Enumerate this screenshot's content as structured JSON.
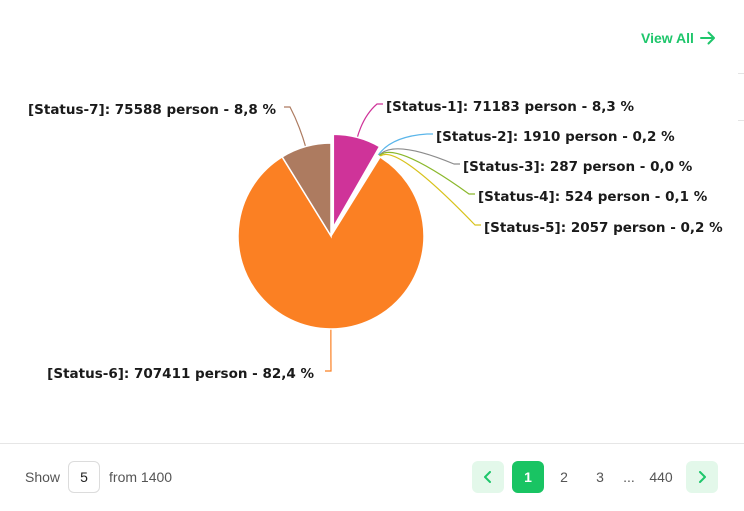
{
  "header": {
    "view_all_label": "View All",
    "view_all_icon": "arrow-right-icon",
    "accent_color": "#1ec66b"
  },
  "chart_data": {
    "type": "pie",
    "title": "",
    "slices": [
      {
        "label": "[Status-1]: 71183 person - 8,3 %",
        "name": "Status-1",
        "value": 71183,
        "percent": 8.3,
        "color": "#cf3399"
      },
      {
        "label": "[Status-2]: 1910 person - 0,2 %",
        "name": "Status-2",
        "value": 1910,
        "percent": 0.2,
        "color": "#5bb6ea"
      },
      {
        "label": "[Status-3]: 287 person - 0,0 %",
        "name": "Status-3",
        "value": 287,
        "percent": 0.0,
        "color": "#8c8c8c"
      },
      {
        "label": "[Status-4]: 524 person - 0,1 %",
        "name": "Status-4",
        "value": 524,
        "percent": 0.1,
        "color": "#8bb82c"
      },
      {
        "label": "[Status-5]: 2057 person - 0,2 %",
        "name": "Status-5",
        "value": 2057,
        "percent": 0.2,
        "color": "#d8c21c"
      },
      {
        "label": "[Status-6]: 707411 person - 82,4 %",
        "name": "Status-6",
        "value": 707411,
        "percent": 82.4,
        "color": "#fb8023"
      },
      {
        "label": "[Status-7]: 75588 person - 8,8 %",
        "name": "Status-7",
        "value": 75588,
        "percent": 8.8,
        "color": "#ad7b60"
      }
    ],
    "exploded_slice": "Status-1"
  },
  "footer": {
    "show_label": "Show",
    "page_size": "5",
    "from_label": "from 1400",
    "pages": [
      "1",
      "2",
      "3"
    ],
    "ellipsis": "...",
    "last_page": "440",
    "current_page": "1",
    "prev_icon": "chevron-left-icon",
    "next_icon": "chevron-right-icon"
  }
}
